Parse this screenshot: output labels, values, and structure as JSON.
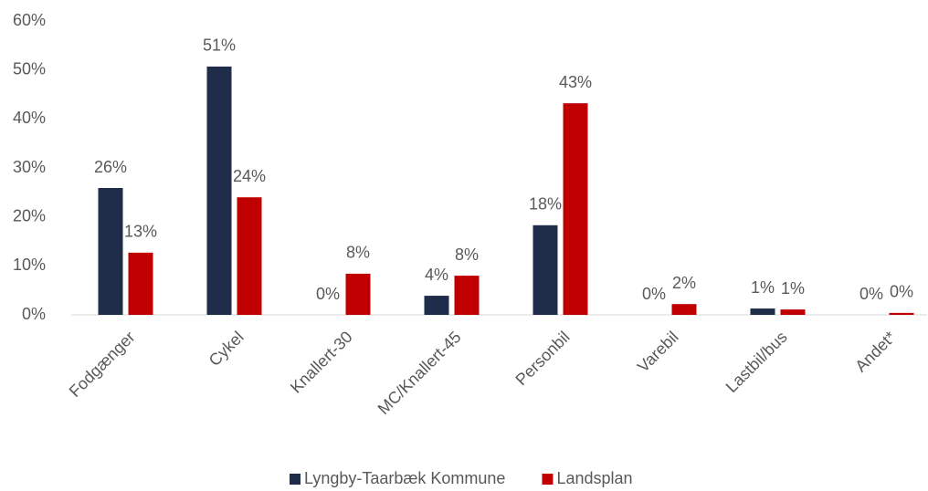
{
  "chart_data": {
    "type": "bar",
    "categories": [
      "Fodgænger",
      "Cykel",
      "Knallert-30",
      "MC/Knallert-45",
      "Personbil",
      "Varebil",
      "Lastbil/bus",
      "Andet*"
    ],
    "series": [
      {
        "name": "Lyngby-Taarbæk Kommune",
        "color": "#1f2d4a",
        "values": [
          25.9,
          50.7,
          0,
          3.9,
          18.3,
          0,
          1.3,
          0
        ],
        "value_labels": [
          "26%",
          "51%",
          "0%",
          "4%",
          "18%",
          "0%",
          "1%",
          "0%"
        ]
      },
      {
        "name": "Landsplan",
        "color": "#c00000",
        "values": [
          12.7,
          24.0,
          8.4,
          8.0,
          43.2,
          2.2,
          1.1,
          0.4
        ],
        "value_labels": [
          "13%",
          "24%",
          "8%",
          "8%",
          "43%",
          "2%",
          "1%",
          "0%"
        ]
      }
    ],
    "ylim": [
      0,
      60
    ],
    "yticks": [
      {
        "value": 0,
        "label": "0%"
      },
      {
        "value": 10,
        "label": "10%"
      },
      {
        "value": 20,
        "label": "20%"
      },
      {
        "value": 30,
        "label": "30%"
      },
      {
        "value": 40,
        "label": "40%"
      },
      {
        "value": 50,
        "label": "50%"
      },
      {
        "value": 60,
        "label": "60%"
      }
    ],
    "grid": false,
    "legend": "bottom"
  }
}
